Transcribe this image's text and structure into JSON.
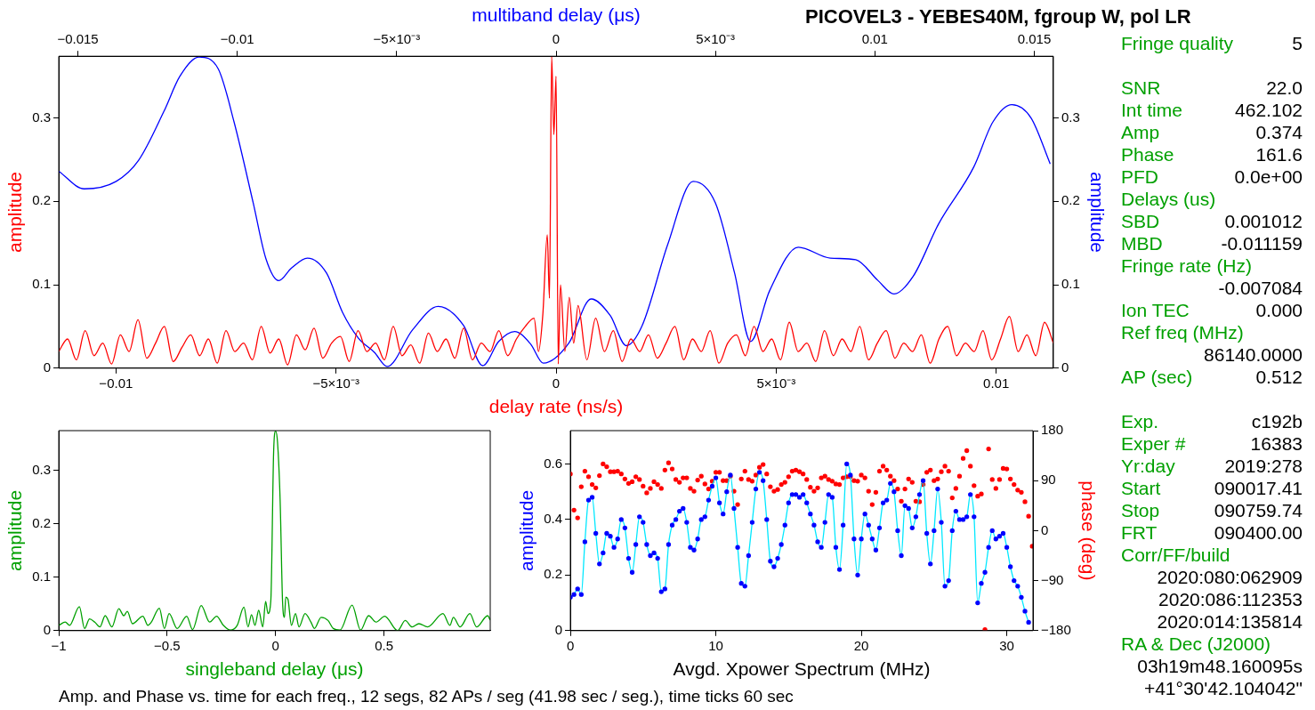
{
  "chart_data": [
    {
      "type": "line",
      "title": "PICOVEL3 - YEBES40M, fgroup W, pol LR",
      "xlabel": "delay rate (ns/s)",
      "x2label": "multiband delay (μs)",
      "ylabel": "amplitude",
      "y2label": "amplitude",
      "xlim": [
        -0.0113,
        0.0113
      ],
      "xticks": [
        {
          "value": -0.01,
          "label": "−0.01"
        },
        {
          "value": -0.005,
          "label": "−5×10⁻³"
        },
        0,
        {
          "value": 0.005,
          "label": "5×10⁻³"
        },
        0.01
      ],
      "x2lim": [
        -0.0156,
        0.0156
      ],
      "x2ticks": [
        {
          "value": -0.015,
          "label": "−0.015"
        },
        {
          "value": -0.01,
          "label": "−0.01"
        },
        {
          "value": -0.005,
          "label": "−5×10⁻³"
        },
        0,
        {
          "value": 0.005,
          "label": "5×10⁻³"
        },
        0.01,
        0.015
      ],
      "ylim": [
        0,
        0.374
      ],
      "yticks": [
        0,
        0.1,
        0.2,
        0.3
      ],
      "y2lim": [
        0,
        0.374
      ],
      "y2ticks": [
        0,
        0.1,
        0.2,
        0.3
      ],
      "series": [
        {
          "color": "#ff0000",
          "x": [
            -0.0113,
            -0.0111,
            -0.0109,
            -0.0107,
            -0.0105,
            -0.0103,
            -0.0101,
            -0.0099,
            -0.0097,
            -0.0095,
            -0.0093,
            -0.0091,
            -0.0089,
            -0.0087,
            -0.0085,
            -0.0083,
            -0.0081,
            -0.0079,
            -0.0077,
            -0.0075,
            -0.0073,
            -0.0071,
            -0.0069,
            -0.0067,
            -0.0065,
            -0.0063,
            -0.0061,
            -0.0059,
            -0.0057,
            -0.0055,
            -0.0053,
            -0.0051,
            -0.0049,
            -0.0047,
            -0.0045,
            -0.0043,
            -0.0041,
            -0.0039,
            -0.0037,
            -0.0035,
            -0.0033,
            -0.0031,
            -0.0029,
            -0.0027,
            -0.0025,
            -0.0023,
            -0.0021,
            -0.0019,
            -0.0017,
            -0.0015,
            -0.0013,
            -0.0011,
            -0.0009,
            -0.0007,
            -0.0005,
            -0.0004,
            -0.0003,
            -0.0002,
            -0.00015,
            -0.0001,
            -5e-05,
            0,
            5e-05,
            0.0001,
            0.0002,
            0.0003,
            0.0004,
            0.0005,
            0.0007,
            0.0009,
            0.0011,
            0.0013,
            0.0015,
            0.0017,
            0.0019,
            0.0021,
            0.0023,
            0.0025,
            0.0027,
            0.0029,
            0.0031,
            0.0033,
            0.0035,
            0.0037,
            0.0039,
            0.0041,
            0.0043,
            0.0045,
            0.0047,
            0.0049,
            0.0051,
            0.0053,
            0.0055,
            0.0057,
            0.0059,
            0.0061,
            0.0063,
            0.0065,
            0.0067,
            0.0069,
            0.0071,
            0.0073,
            0.0075,
            0.0077,
            0.0079,
            0.0081,
            0.0083,
            0.0085,
            0.0087,
            0.0089,
            0.0091,
            0.0093,
            0.0095,
            0.0097,
            0.0099,
            0.0101,
            0.0103,
            0.0105,
            0.0107,
            0.0109,
            0.0111,
            0.0113
          ],
          "values": [
            0.02,
            0.035,
            0.01,
            0.045,
            0.015,
            0.03,
            0.005,
            0.04,
            0.02,
            0.058,
            0.012,
            0.03,
            0.05,
            0.008,
            0.025,
            0.04,
            0.015,
            0.035,
            0.006,
            0.045,
            0.02,
            0.03,
            0.01,
            0.05,
            0.018,
            0.035,
            0.004,
            0.04,
            0.022,
            0.048,
            0.012,
            0.03,
            0.038,
            0.008,
            0.045,
            0.02,
            0.03,
            0.01,
            0.05,
            0.015,
            0.028,
            0.006,
            0.042,
            0.02,
            0.035,
            0.012,
            0.048,
            0.01,
            0.03,
            0.02,
            0.045,
            0.015,
            0.035,
            0.05,
            0.06,
            0.02,
            0.065,
            0.16,
            0.084,
            0.374,
            0.28,
            0.35,
            0.005,
            0.1,
            0.02,
            0.085,
            0.03,
            0.075,
            0.01,
            0.06,
            0.02,
            0.045,
            0.008,
            0.035,
            0.02,
            0.04,
            0.012,
            0.03,
            0.05,
            0.01,
            0.035,
            0.02,
            0.045,
            0.006,
            0.03,
            0.04,
            0.015,
            0.05,
            0.02,
            0.035,
            0.01,
            0.055,
            0.02,
            0.03,
            0.008,
            0.045,
            0.015,
            0.035,
            0.02,
            0.05,
            0.01,
            0.03,
            0.045,
            0.012,
            0.03,
            0.02,
            0.04,
            0.006,
            0.035,
            0.05,
            0.015,
            0.03,
            0.02,
            0.045,
            0.01,
            0.035,
            0.062,
            0.02,
            0.04,
            0.015,
            0.055,
            0.03
          ]
        },
        {
          "color": "#0000ff",
          "axis": "x2",
          "x": [
            -0.0156,
            -0.0148,
            -0.0138,
            -0.0131,
            -0.0123,
            -0.0118,
            -0.0112,
            -0.0106,
            -0.0101,
            -0.0095,
            -0.0091,
            -0.0087,
            -0.0083,
            -0.0078,
            -0.0072,
            -0.0067,
            -0.0062,
            -0.0057,
            -0.0053,
            -0.0045,
            -0.0037,
            -0.0029,
            -0.0023,
            -0.0018,
            -0.0013,
            -0.0008,
            -0.0004,
            0.0004,
            0.0011,
            0.0017,
            0.0022,
            0.0027,
            0.0035,
            0.0043,
            0.005,
            0.0056,
            0.0061,
            0.0067,
            0.0076,
            0.0086,
            0.0094,
            0.0101,
            0.0106,
            0.0112,
            0.012,
            0.0131,
            0.0137,
            0.0143,
            0.0149,
            0.0155
          ],
          "values": [
            0.236,
            0.215,
            0.224,
            0.249,
            0.308,
            0.35,
            0.373,
            0.359,
            0.295,
            0.198,
            0.131,
            0.105,
            0.12,
            0.132,
            0.114,
            0.067,
            0.036,
            0.019,
            0.002,
            0.046,
            0.074,
            0.051,
            0.003,
            0.032,
            0.044,
            0.029,
            0.006,
            0.03,
            0.083,
            0.063,
            0.027,
            0.051,
            0.148,
            0.224,
            0.198,
            0.114,
            0.032,
            0.093,
            0.145,
            0.132,
            0.13,
            0.105,
            0.089,
            0.11,
            0.173,
            0.241,
            0.295,
            0.316,
            0.3,
            0.245
          ]
        }
      ]
    },
    {
      "type": "line",
      "xlabel": "singleband delay (μs)",
      "ylabel": "amplitude",
      "xlim": [
        -1,
        0.99
      ],
      "xticks": [
        {
          "value": -1,
          "label": "−1"
        },
        {
          "value": -0.5,
          "label": "−0.5"
        },
        0,
        0.5
      ],
      "ylim": [
        0,
        0.375
      ],
      "yticks": [
        0,
        0.1,
        0.2,
        0.3
      ],
      "series": [
        {
          "color": "#00a000",
          "x": [
            -1,
            -0.97,
            -0.95,
            -0.905,
            -0.881,
            -0.858,
            -0.834,
            -0.81,
            -0.786,
            -0.755,
            -0.723,
            -0.7,
            -0.684,
            -0.66,
            -0.612,
            -0.589,
            -0.573,
            -0.536,
            -0.513,
            -0.491,
            -0.454,
            -0.41,
            -0.383,
            -0.343,
            -0.304,
            -0.272,
            -0.241,
            -0.209,
            -0.177,
            -0.146,
            -0.127,
            -0.111,
            -0.095,
            -0.078,
            -0.059,
            -0.046,
            -0.035,
            -0.022,
            -0.009,
            0,
            0.009,
            0.021,
            0.032,
            0.041,
            0.047,
            0.057,
            0.073,
            0.092,
            0.108,
            0.136,
            0.163,
            0.179,
            0.21,
            0.242,
            0.266,
            0.297,
            0.353,
            0.392,
            0.429,
            0.464,
            0.503,
            0.563,
            0.598,
            0.63,
            0.661,
            0.701,
            0.772,
            0.804,
            0.82,
            0.851,
            0.896,
            0.927,
            0.978,
            0.99
          ],
          "values": [
            0.01,
            0.016,
            0.01,
            0.045,
            0.004,
            0.022,
            0.016,
            0.007,
            0.028,
            0.007,
            0.041,
            0.028,
            0.036,
            0.013,
            0.027,
            0.01,
            0.016,
            0.042,
            0.004,
            0.032,
            0.004,
            0.027,
            0.002,
            0.047,
            0.016,
            0.027,
            0.01,
            0.001,
            0.01,
            0.044,
            0.007,
            0.03,
            0.01,
            0.038,
            0.007,
            0.055,
            0.032,
            0.056,
            0.335,
            0.374,
            0.353,
            0.244,
            0.056,
            0.025,
            0.063,
            0.059,
            0.01,
            0.032,
            0.007,
            0.032,
            0.016,
            0.004,
            0.025,
            0.019,
            0.004,
            0.001,
            0.048,
            0.001,
            0.028,
            0.016,
            0.027,
            0,
            0.019,
            0.007,
            0.013,
            0.007,
            0.032,
            0.01,
            0.025,
            0.007,
            0.032,
            0.007,
            0.028,
            0.02
          ]
        }
      ]
    },
    {
      "type": "line",
      "xlabel": "Avgd. Xpower Spectrum (MHz)",
      "ylabel": "amplitude",
      "y2label": "phase (deg)",
      "xlim": [
        0,
        31.8
      ],
      "xticks": [
        0,
        10,
        20,
        30
      ],
      "ylim": [
        0,
        0.72
      ],
      "yticks": [
        0,
        0.2,
        0.4,
        0.6
      ],
      "y2lim": [
        -180,
        180
      ],
      "y2ticks": [
        {
          "value": -180,
          "label": "−180"
        },
        {
          "value": -90,
          "label": "−90"
        },
        0,
        90,
        180
      ],
      "marker": "circle",
      "series": [
        {
          "color": "#0000ff",
          "x": [
            0,
            0.25,
            0.5,
            0.75,
            1,
            1.25,
            1.5,
            1.75,
            2,
            2.25,
            2.5,
            2.75,
            3,
            3.25,
            3.5,
            3.75,
            4,
            4.25,
            4.5,
            4.75,
            5,
            5.25,
            5.5,
            5.75,
            6,
            6.25,
            6.5,
            6.75,
            7,
            7.25,
            7.5,
            7.75,
            8,
            8.25,
            8.5,
            8.75,
            9,
            9.25,
            9.5,
            9.75,
            10,
            10.25,
            10.5,
            10.75,
            11,
            11.25,
            11.5,
            11.75,
            12,
            12.25,
            12.5,
            12.75,
            13,
            13.25,
            13.5,
            13.75,
            14,
            14.25,
            14.5,
            14.75,
            15,
            15.25,
            15.5,
            15.75,
            16,
            16.25,
            16.5,
            16.75,
            17,
            17.25,
            17.5,
            17.75,
            18,
            18.25,
            18.5,
            18.75,
            19,
            19.25,
            19.5,
            19.75,
            20,
            20.25,
            20.5,
            20.75,
            21,
            21.25,
            21.5,
            21.75,
            22,
            22.25,
            22.5,
            22.75,
            23,
            23.25,
            23.5,
            23.75,
            24,
            24.25,
            24.5,
            24.75,
            25,
            25.25,
            25.5,
            25.75,
            26,
            26.25,
            26.5,
            26.75,
            27,
            27.25,
            27.5,
            27.75,
            28,
            28.25,
            28.5,
            28.75,
            29,
            29.25,
            29.5,
            29.75,
            30,
            30.25,
            30.5,
            30.75,
            31,
            31.25,
            31.5
          ],
          "values": [
            0.12,
            0.13,
            0.15,
            0.13,
            0.32,
            0.47,
            0.48,
            0.35,
            0.24,
            0.28,
            0.35,
            0.34,
            0.3,
            0.33,
            0.4,
            0.37,
            0.26,
            0.21,
            0.31,
            0.41,
            0.39,
            0.31,
            0.27,
            0.28,
            0.26,
            0.14,
            0.15,
            0.31,
            0.38,
            0.4,
            0.43,
            0.44,
            0.39,
            0.3,
            0.29,
            0.33,
            0.4,
            0.41,
            0.47,
            0.52,
            0.55,
            0.46,
            0.42,
            0.5,
            0.56,
            0.44,
            0.3,
            0.17,
            0.16,
            0.27,
            0.39,
            0.51,
            0.57,
            0.54,
            0.4,
            0.25,
            0.23,
            0.26,
            0.31,
            0.38,
            0.46,
            0.49,
            0.49,
            0.48,
            0.49,
            0.46,
            0.42,
            0.38,
            0.32,
            0.3,
            0.39,
            0.49,
            0.48,
            0.3,
            0.22,
            0.38,
            0.6,
            0.56,
            0.33,
            0.2,
            0.33,
            0.42,
            0.38,
            0.33,
            0.29,
            0.37,
            0.46,
            0.47,
            0.53,
            0.5,
            0.36,
            0.27,
            0.45,
            0.44,
            0.37,
            0.41,
            0.49,
            0.54,
            0.35,
            0.24,
            0.36,
            0.51,
            0.39,
            0.16,
            0.18,
            0.36,
            0.43,
            0.4,
            0.4,
            0.41,
            0.49,
            0.41,
            0.1,
            0.17,
            0.21,
            0.3,
            0.36,
            0.33,
            0.34,
            0.35,
            0.3,
            0.23,
            0.18,
            0.16,
            0.12,
            0.07,
            0.03
          ]
        },
        {
          "type": "scatter",
          "color": "#ff0000",
          "axis": "y2",
          "x": [
            0,
            0.25,
            0.5,
            0.75,
            1,
            1.25,
            1.5,
            1.75,
            2,
            2.25,
            2.5,
            2.75,
            3,
            3.25,
            3.5,
            3.75,
            4,
            4.25,
            4.5,
            4.75,
            5,
            5.25,
            5.5,
            5.75,
            6,
            6.25,
            6.5,
            6.75,
            7,
            7.25,
            7.5,
            7.75,
            8,
            8.25,
            8.5,
            8.75,
            9,
            9.25,
            9.5,
            9.75,
            10,
            10.25,
            10.5,
            10.75,
            11,
            11.25,
            11.5,
            11.75,
            12,
            12.25,
            12.5,
            12.75,
            13,
            13.25,
            13.5,
            13.75,
            14,
            14.25,
            14.5,
            14.75,
            15,
            15.25,
            15.5,
            15.75,
            16,
            16.25,
            16.5,
            16.75,
            17,
            17.25,
            17.5,
            17.75,
            18,
            18.25,
            18.5,
            18.75,
            19,
            19.25,
            19.5,
            19.75,
            20,
            20.25,
            20.5,
            20.75,
            21,
            21.25,
            21.5,
            21.75,
            22,
            22.25,
            22.5,
            22.75,
            23,
            23.25,
            23.5,
            23.75,
            24,
            24.25,
            24.5,
            24.75,
            25,
            25.25,
            25.5,
            25.75,
            26,
            26.25,
            26.5,
            26.75,
            27,
            27.25,
            27.5,
            27.75,
            28,
            28.25,
            28.5,
            28.75,
            29,
            29.25,
            29.5,
            29.75,
            30,
            30.25,
            30.5,
            30.75,
            31,
            31.25,
            31.5,
            31.75
          ],
          "values": [
            102,
            37,
            23,
            79,
            107,
            97,
            83,
            77,
            99,
            120,
            115,
            106,
            106,
            107,
            102,
            93,
            85,
            88,
            97,
            92,
            80,
            68,
            76,
            88,
            83,
            76,
            109,
            122,
            111,
            92,
            87,
            95,
            95,
            76,
            71,
            91,
            98,
            84,
            75,
            89,
            105,
            105,
            90,
            90,
            98,
            71,
            47,
            93,
            107,
            92,
            89,
            100,
            114,
            119,
            102,
            79,
            71,
            74,
            83,
            87,
            97,
            107,
            109,
            106,
            102,
            92,
            78,
            71,
            77,
            95,
            98,
            92,
            89,
            84,
            83,
            95,
            97,
            97,
            90,
            89,
            100,
            95,
            71,
            47,
            69,
            107,
            116,
            109,
            98,
            90,
            75,
            53,
            75,
            93,
            87,
            53,
            52,
            83,
            105,
            109,
            90,
            93,
            106,
            116,
            107,
            59,
            76,
            98,
            130,
            144,
            116,
            81,
            62,
            66,
            -178,
            147,
            92,
            76,
            92,
            112,
            111,
            93,
            83,
            73,
            69,
            52,
            26,
            -28
          ]
        }
      ]
    },
    {
      "type": "other",
      "color": "#00a000",
      "categories": [
        "Fringe quality",
        null,
        "SNR",
        "Int time",
        "Amp",
        "Phase",
        "PFD",
        "Delays (us)",
        "SBD",
        "MBD",
        "Fringe rate (Hz)",
        null,
        "Ion TEC",
        "Ref freq (MHz)",
        null,
        "AP (sec)",
        null,
        "Exp.",
        "Exper #",
        "Yr:day",
        "Start",
        "Stop",
        "FRT",
        "Corr/FF/build",
        null,
        null,
        null,
        "RA & Dec (J2000)",
        null,
        null
      ],
      "value_labels": [
        "5",
        null,
        "22.0",
        "462.102",
        "0.374",
        "161.6",
        "0.0e+00",
        null,
        "0.001012",
        "-0.011159",
        null,
        "-0.007084",
        "0.000",
        null,
        "86140.0000",
        "0.512",
        null,
        "c192b",
        "16383",
        "2019:278",
        "090017.41",
        "090759.74",
        "090400.00",
        null,
        "2020:080:062909",
        "2020:086:112353",
        "2020:014:135814",
        null,
        "03h19m48.160095s",
        "+41°30'42.104042\""
      ],
      "annotations": [
        "Amp. and Phase vs. time for each freq., 12 segs, 82 APs / seg (41.98 sec / seg.), time ticks 60 sec"
      ]
    }
  ]
}
